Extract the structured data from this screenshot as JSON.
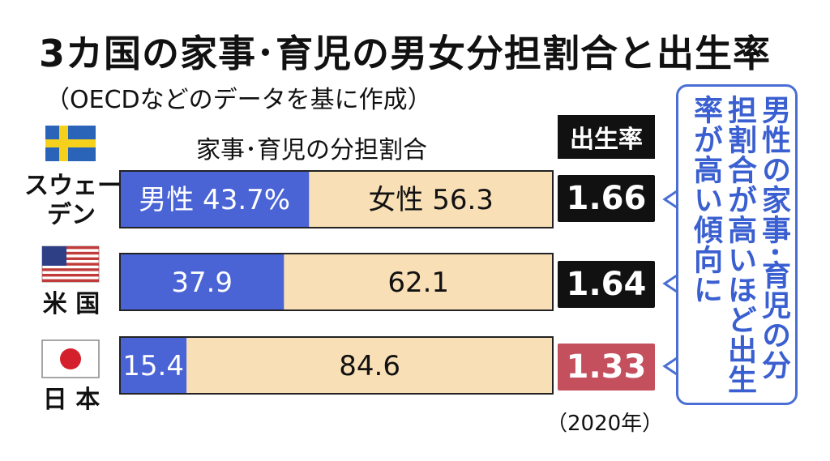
{
  "title": "3カ国の家事･育児の男女分担割合と出生率",
  "subtitle": "（OECDなどのデータを基に作成）",
  "bar_header": "家事･育児の分担割合",
  "rate_header": "出生率",
  "year_note": "（2020年）",
  "callout": "男性の家事･育児の分担割合が高いほど出生率が高い傾向に",
  "colors": {
    "male": "#4a64d6",
    "female": "#f8dfb6",
    "rate_default": "#111111",
    "rate_highlight": "#c4505e",
    "callout": "#3a5fd0"
  },
  "countries": [
    {
      "label_lines": [
        "スウェー",
        "デン"
      ],
      "flag": "sweden-flag"
    },
    {
      "label_lines": [
        "米 国"
      ],
      "flag": "usa-flag"
    },
    {
      "label_lines": [
        "日 本"
      ],
      "flag": "japan-flag"
    }
  ],
  "chart_data": {
    "type": "bar",
    "stacked": true,
    "orientation": "horizontal",
    "categories": [
      "スウェーデン",
      "米国",
      "日本"
    ],
    "series": [
      {
        "name": "男性",
        "values": [
          43.7,
          37.9,
          15.4
        ],
        "labels": [
          "男性 43.7%",
          "37.9",
          "15.4"
        ]
      },
      {
        "name": "女性",
        "values": [
          56.3,
          62.1,
          84.6
        ],
        "labels": [
          "女性  56.3",
          "62.1",
          "84.6"
        ]
      }
    ],
    "xlim": [
      0,
      100
    ],
    "birth_rate": {
      "values": [
        "1.66",
        "1.64",
        "1.33"
      ],
      "highlight": [
        false,
        false,
        true
      ]
    }
  }
}
